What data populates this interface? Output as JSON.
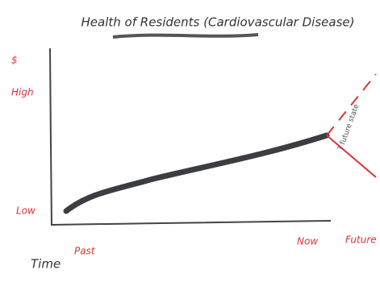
{
  "chart_data": {
    "type": "line",
    "title": "Health of Residents (Cardiovascular Disease)",
    "y_labels": [
      "$",
      "High",
      "Low"
    ],
    "x_label": "Time",
    "x_labels": [
      "Past",
      "Now",
      "Future"
    ],
    "annotation": "? future state"
  }
}
